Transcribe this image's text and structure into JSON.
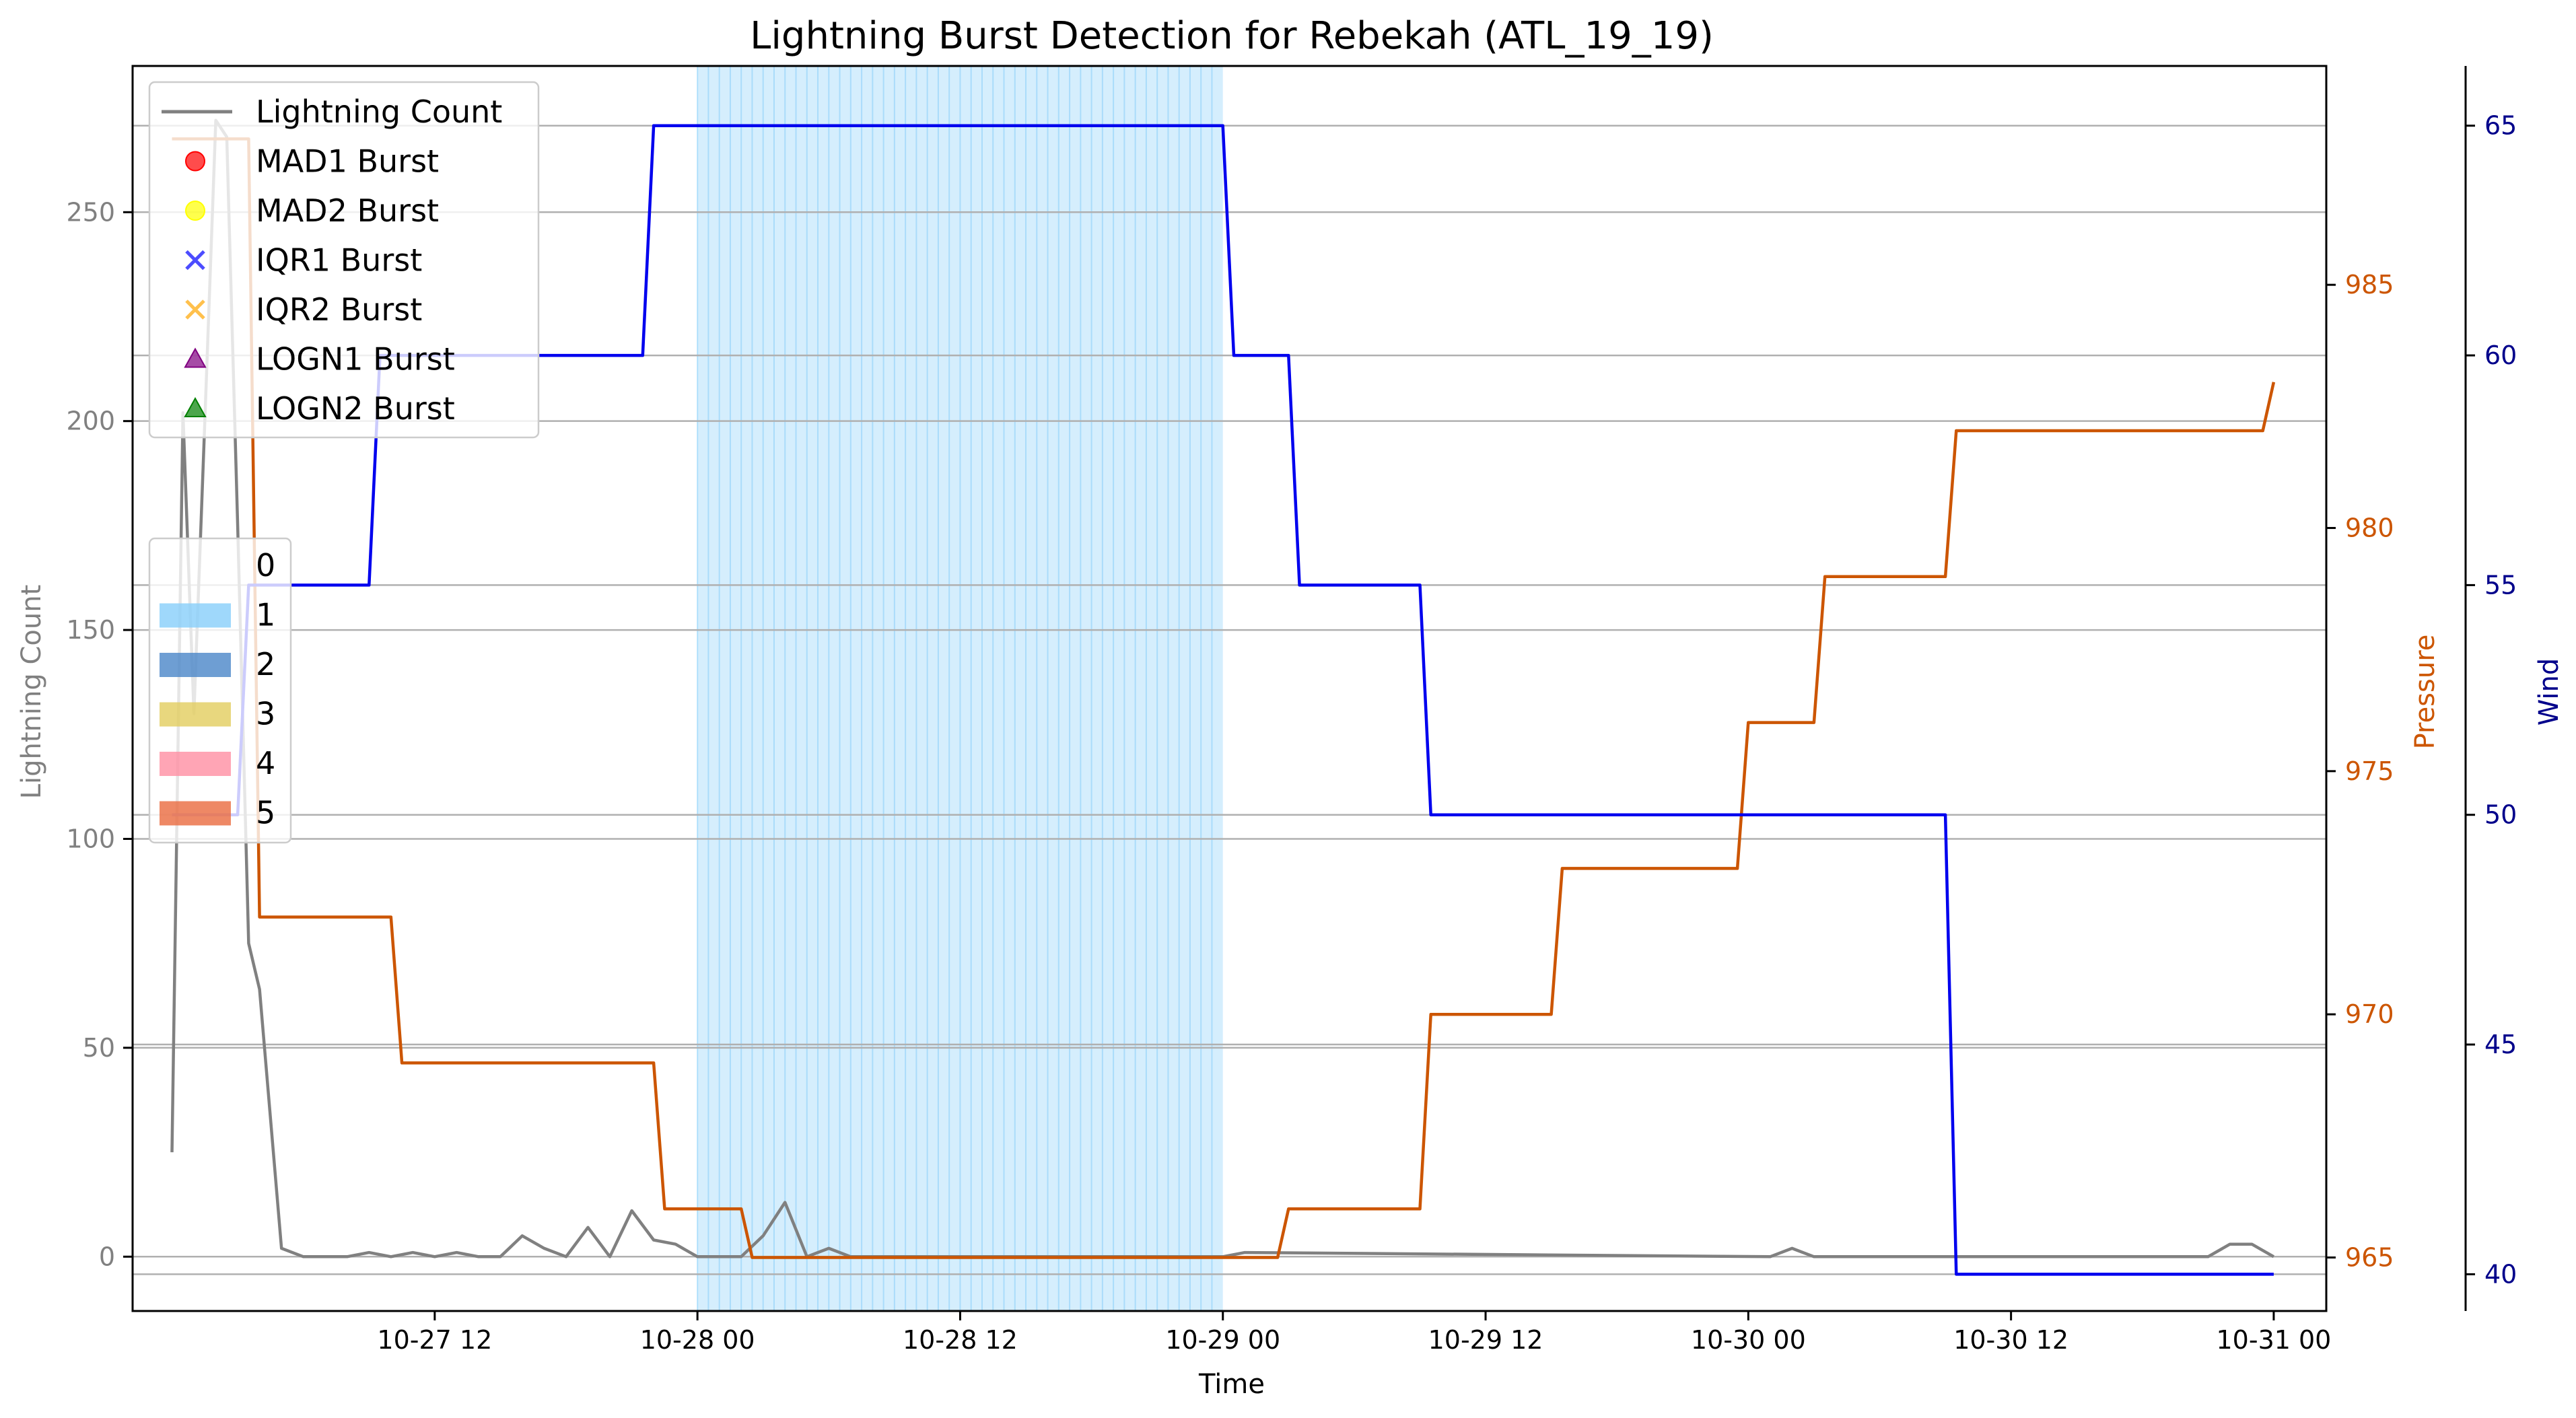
{
  "chart_data": {
    "type": "line",
    "title": "Lightning Burst Detection for Rebekah (ATL_19_19)",
    "xlabel": "Time",
    "ylabel_left": "Lightning Count",
    "ylabel_pressure": "Pressure",
    "ylabel_wind": "Wind",
    "x_ticks": [
      "10-27 12",
      "10-28 00",
      "10-28 12",
      "10-29 00",
      "10-29 12",
      "10-30 00",
      "10-30 12",
      "10-31 00"
    ],
    "xlim": [
      "2019-10-26 22:12",
      "2019-10-31 02:24"
    ],
    "ylim_left": [
      -13,
      285
    ],
    "ylim_pressure": [
      963.9,
      989.5
    ],
    "ylim_wind": [
      39.2,
      66.3
    ],
    "yticks_left": [
      0,
      50,
      100,
      150,
      200,
      250
    ],
    "yticks_pressure": [
      965,
      970,
      975,
      980,
      985
    ],
    "yticks_wind": [
      40,
      45,
      50,
      55,
      60,
      65
    ],
    "grid": "horizontal",
    "colors": {
      "lightning": "#808080",
      "pressure": "#cc5500",
      "wind": "#0000ee",
      "shade_1": "#87cefa",
      "left_axis_text": "#808080",
      "pressure_axis_text": "#cc5500",
      "wind_axis_text": "#00008b"
    },
    "shaded_interval": {
      "category": "1",
      "start": "2019-10-28 00:00",
      "end": "2019-10-29 00:00"
    },
    "series": [
      {
        "name": "Lightning Count",
        "axis": "left",
        "x": [
          "2019-10-27 00:00",
          "2019-10-27 00:30",
          "2019-10-27 01:00",
          "2019-10-27 01:30",
          "2019-10-27 02:00",
          "2019-10-27 02:30",
          "2019-10-27 03:00",
          "2019-10-27 03:30",
          "2019-10-27 04:00",
          "2019-10-27 05:00",
          "2019-10-27 06:00",
          "2019-10-27 08:00",
          "2019-10-27 09:00",
          "2019-10-27 10:00",
          "2019-10-27 11:00",
          "2019-10-27 12:00",
          "2019-10-27 13:00",
          "2019-10-27 14:00",
          "2019-10-27 15:00",
          "2019-10-27 16:00",
          "2019-10-27 17:00",
          "2019-10-27 18:00",
          "2019-10-27 19:00",
          "2019-10-27 20:00",
          "2019-10-27 21:00",
          "2019-10-27 22:00",
          "2019-10-27 23:00",
          "2019-10-28 00:00",
          "2019-10-28 01:00",
          "2019-10-28 02:00",
          "2019-10-28 03:00",
          "2019-10-28 04:00",
          "2019-10-28 05:00",
          "2019-10-28 06:00",
          "2019-10-28 07:00",
          "2019-10-29 00:00",
          "2019-10-29 01:00",
          "2019-10-30 01:00",
          "2019-10-30 02:00",
          "2019-10-30 03:00",
          "2019-10-30 04:00",
          "2019-10-30 05:00",
          "2019-10-30 21:00",
          "2019-10-30 22:00",
          "2019-10-30 23:00",
          "2019-10-31 00:00"
        ],
        "values": [
          25,
          202,
          130,
          200,
          272,
          268,
          175,
          75,
          64,
          2,
          0,
          0,
          1,
          0,
          1,
          0,
          1,
          0,
          0,
          5,
          2,
          0,
          7,
          0,
          11,
          4,
          3,
          0,
          0,
          0,
          5,
          13,
          0,
          2,
          0,
          0,
          1,
          0,
          2,
          0,
          0,
          0,
          0,
          3,
          3,
          0
        ]
      },
      {
        "name": "Pressure",
        "axis": "pressure",
        "x": [
          "2019-10-27 00:00",
          "2019-10-27 03:30",
          "2019-10-27 04:00",
          "2019-10-27 10:00",
          "2019-10-27 10:30",
          "2019-10-27 22:00",
          "2019-10-27 22:30",
          "2019-10-28 02:00",
          "2019-10-28 02:30",
          "2019-10-28 03:00",
          "2019-10-29 02:30",
          "2019-10-29 03:00",
          "2019-10-29 09:00",
          "2019-10-29 09:30",
          "2019-10-29 15:00",
          "2019-10-29 15:30",
          "2019-10-29 23:30",
          "2019-10-30 00:00",
          "2019-10-30 03:00",
          "2019-10-30 03:30",
          "2019-10-30 09:00",
          "2019-10-30 09:30",
          "2019-10-30 23:30",
          "2019-10-31 00:00"
        ],
        "values": [
          988,
          988,
          972,
          972,
          969,
          969,
          966,
          966,
          965,
          965,
          965,
          966,
          966,
          970,
          970,
          973,
          973,
          976,
          976,
          979,
          979,
          982,
          982,
          983
        ]
      },
      {
        "name": "Wind",
        "axis": "wind",
        "x": [
          "2019-10-27 00:00",
          "2019-10-27 03:00",
          "2019-10-27 03:30",
          "2019-10-27 09:00",
          "2019-10-27 09:30",
          "2019-10-27 21:30",
          "2019-10-27 22:00",
          "2019-10-29 00:00",
          "2019-10-29 00:30",
          "2019-10-29 03:00",
          "2019-10-29 03:30",
          "2019-10-29 09:00",
          "2019-10-29 09:30",
          "2019-10-30 09:00",
          "2019-10-30 09:30",
          "2019-10-31 00:00"
        ],
        "values": [
          50,
          50,
          55,
          55,
          60,
          60,
          65,
          65,
          60,
          60,
          55,
          55,
          50,
          50,
          40,
          40
        ]
      }
    ],
    "legend_markers": {
      "position": "upper-left",
      "entries": [
        {
          "label": "Lightning Count",
          "kind": "line",
          "color": "#808080"
        },
        {
          "label": "MAD1 Burst",
          "kind": "circle",
          "color": "#ff0000"
        },
        {
          "label": "MAD2 Burst",
          "kind": "circle",
          "color": "#ffff00"
        },
        {
          "label": "IQR1 Burst",
          "kind": "x",
          "color": "#0000ff"
        },
        {
          "label": "IQR2 Burst",
          "kind": "x",
          "color": "#ffa500"
        },
        {
          "label": "LOGN1 Burst",
          "kind": "triangle",
          "color": "#800080"
        },
        {
          "label": "LOGN2 Burst",
          "kind": "triangle",
          "color": "#008000"
        }
      ]
    },
    "legend_categories": {
      "position": "center-left",
      "entries": [
        {
          "label": "0",
          "color": "none"
        },
        {
          "label": "1",
          "color": "#87cefa"
        },
        {
          "label": "2",
          "color": "#4a86c8"
        },
        {
          "label": "3",
          "color": "#e2cd5e"
        },
        {
          "label": "4",
          "color": "#ff8fa3"
        },
        {
          "label": "5",
          "color": "#ea6a3e"
        }
      ]
    }
  }
}
